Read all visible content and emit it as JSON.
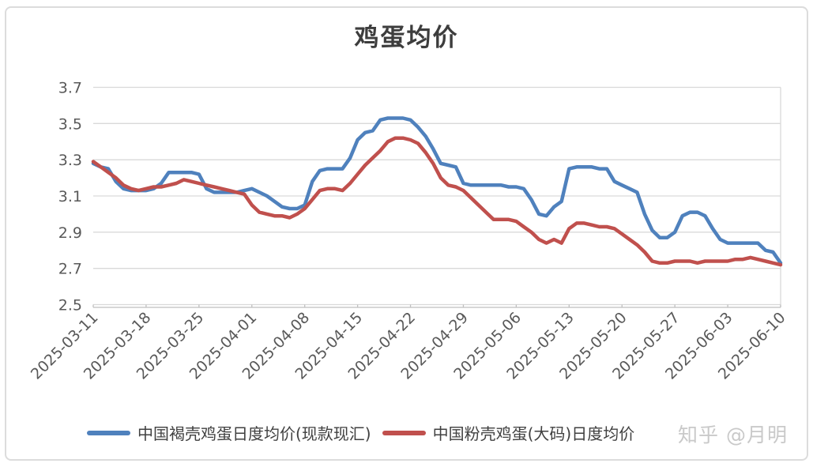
{
  "title": "鸡蛋均价",
  "watermark": "知乎 @月明",
  "chart_data": {
    "type": "line",
    "title": "鸡蛋均价",
    "xlabel": "",
    "ylabel": "",
    "ylim": [
      2.5,
      3.7
    ],
    "y_ticks": [
      2.5,
      2.7,
      2.9,
      3.1,
      3.3,
      3.5,
      3.7
    ],
    "grid": "horizontal",
    "legend_position": "bottom",
    "x_tick_labels": [
      "2025-03-11",
      "2025-03-18",
      "2025-03-25",
      "2025-04-01",
      "2025-04-08",
      "2025-04-15",
      "2025-04-22",
      "2025-04-29",
      "2025-05-06",
      "2025-05-13",
      "2025-05-20",
      "2025-05-27",
      "2025-06-03",
      "2025-06-10"
    ],
    "x": [
      "2025-03-11",
      "2025-03-12",
      "2025-03-13",
      "2025-03-14",
      "2025-03-15",
      "2025-03-16",
      "2025-03-17",
      "2025-03-18",
      "2025-03-19",
      "2025-03-20",
      "2025-03-21",
      "2025-03-22",
      "2025-03-23",
      "2025-03-24",
      "2025-03-25",
      "2025-03-26",
      "2025-03-27",
      "2025-03-28",
      "2025-03-29",
      "2025-03-30",
      "2025-03-31",
      "2025-04-01",
      "2025-04-02",
      "2025-04-03",
      "2025-04-04",
      "2025-04-05",
      "2025-04-06",
      "2025-04-07",
      "2025-04-08",
      "2025-04-09",
      "2025-04-10",
      "2025-04-11",
      "2025-04-12",
      "2025-04-13",
      "2025-04-14",
      "2025-04-15",
      "2025-04-16",
      "2025-04-17",
      "2025-04-18",
      "2025-04-19",
      "2025-04-20",
      "2025-04-21",
      "2025-04-22",
      "2025-04-23",
      "2025-04-24",
      "2025-04-25",
      "2025-04-26",
      "2025-04-27",
      "2025-04-28",
      "2025-04-29",
      "2025-04-30",
      "2025-05-01",
      "2025-05-02",
      "2025-05-03",
      "2025-05-04",
      "2025-05-05",
      "2025-05-06",
      "2025-05-07",
      "2025-05-08",
      "2025-05-09",
      "2025-05-10",
      "2025-05-11",
      "2025-05-12",
      "2025-05-13",
      "2025-05-14",
      "2025-05-15",
      "2025-05-16",
      "2025-05-17",
      "2025-05-18",
      "2025-05-19",
      "2025-05-20",
      "2025-05-21",
      "2025-05-22",
      "2025-05-23",
      "2025-05-24",
      "2025-05-25",
      "2025-05-26",
      "2025-05-27",
      "2025-05-28",
      "2025-05-29",
      "2025-05-30",
      "2025-05-31",
      "2025-06-01",
      "2025-06-02",
      "2025-06-03",
      "2025-06-04",
      "2025-06-05",
      "2025-06-06",
      "2025-06-07",
      "2025-06-08",
      "2025-06-09",
      "2025-06-10"
    ],
    "series": [
      {
        "name": "中国褐壳鸡蛋日度均价(现款现汇)",
        "color": "#4F81BD",
        "values": [
          3.28,
          3.26,
          3.25,
          3.18,
          3.14,
          3.13,
          3.13,
          3.13,
          3.14,
          3.17,
          3.23,
          3.23,
          3.23,
          3.23,
          3.22,
          3.14,
          3.12,
          3.12,
          3.12,
          3.12,
          3.13,
          3.14,
          3.12,
          3.1,
          3.07,
          3.04,
          3.03,
          3.03,
          3.05,
          3.18,
          3.24,
          3.25,
          3.25,
          3.25,
          3.31,
          3.41,
          3.45,
          3.46,
          3.52,
          3.53,
          3.53,
          3.53,
          3.52,
          3.48,
          3.43,
          3.36,
          3.28,
          3.27,
          3.26,
          3.17,
          3.16,
          3.16,
          3.16,
          3.16,
          3.16,
          3.15,
          3.15,
          3.14,
          3.08,
          3.0,
          2.99,
          3.04,
          3.07,
          3.25,
          3.26,
          3.26,
          3.26,
          3.25,
          3.25,
          3.18,
          3.16,
          3.14,
          3.12,
          3.0,
          2.91,
          2.87,
          2.87,
          2.9,
          2.99,
          3.01,
          3.01,
          2.99,
          2.92,
          2.86,
          2.84,
          2.84,
          2.84,
          2.84,
          2.84,
          2.8,
          2.79,
          2.73
        ]
      },
      {
        "name": "中国粉壳鸡蛋(大码)日度均价",
        "color": "#C0504D",
        "values": [
          3.29,
          3.26,
          3.23,
          3.2,
          3.16,
          3.14,
          3.13,
          3.14,
          3.15,
          3.15,
          3.16,
          3.17,
          3.19,
          3.18,
          3.17,
          3.16,
          3.15,
          3.14,
          3.13,
          3.12,
          3.11,
          3.05,
          3.01,
          3.0,
          2.99,
          2.99,
          2.98,
          3.0,
          3.03,
          3.08,
          3.13,
          3.14,
          3.14,
          3.13,
          3.17,
          3.22,
          3.27,
          3.31,
          3.35,
          3.4,
          3.42,
          3.42,
          3.41,
          3.39,
          3.34,
          3.28,
          3.2,
          3.16,
          3.15,
          3.13,
          3.09,
          3.05,
          3.01,
          2.97,
          2.97,
          2.97,
          2.96,
          2.93,
          2.9,
          2.86,
          2.84,
          2.86,
          2.84,
          2.92,
          2.95,
          2.95,
          2.94,
          2.93,
          2.93,
          2.92,
          2.89,
          2.86,
          2.83,
          2.79,
          2.74,
          2.73,
          2.73,
          2.74,
          2.74,
          2.74,
          2.73,
          2.74,
          2.74,
          2.74,
          2.74,
          2.75,
          2.75,
          2.76,
          2.75,
          2.74,
          2.73,
          2.72
        ]
      }
    ],
    "colors": {
      "gridline": "#D9D9D9",
      "axis_line": "#BFBFBF",
      "axis_text": "#595959",
      "title_text": "#3D3D3D"
    }
  }
}
